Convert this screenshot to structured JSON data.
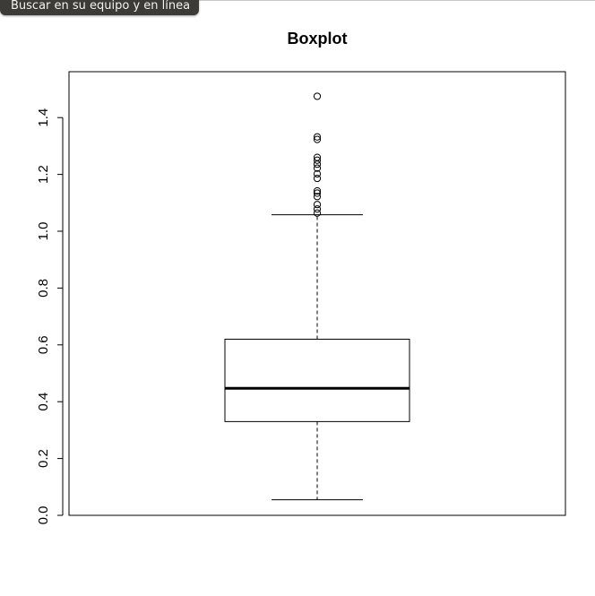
{
  "tooltip": {
    "text": "Buscar en su equipo y en línea"
  },
  "chart_data": {
    "type": "boxplot",
    "title": "Boxplot",
    "xlabel": "",
    "ylabel": "",
    "ylim": [
      0.0,
      1.53
    ],
    "yticks": [
      0.0,
      0.2,
      0.4,
      0.6,
      0.8,
      1.0,
      1.2,
      1.4
    ],
    "ytick_labels": [
      "0.0",
      "0.2",
      "0.4",
      "0.6",
      "0.8",
      "1.0",
      "1.2",
      "1.4"
    ],
    "box": {
      "lower_whisker": 0.055,
      "q1": 0.33,
      "median": 0.447,
      "q3": 0.62,
      "upper_whisker": 1.058
    },
    "outliers": [
      1.064,
      1.078,
      1.094,
      1.122,
      1.134,
      1.142,
      1.186,
      1.202,
      1.222,
      1.236,
      1.25,
      1.26,
      1.323,
      1.332,
      1.475
    ]
  }
}
